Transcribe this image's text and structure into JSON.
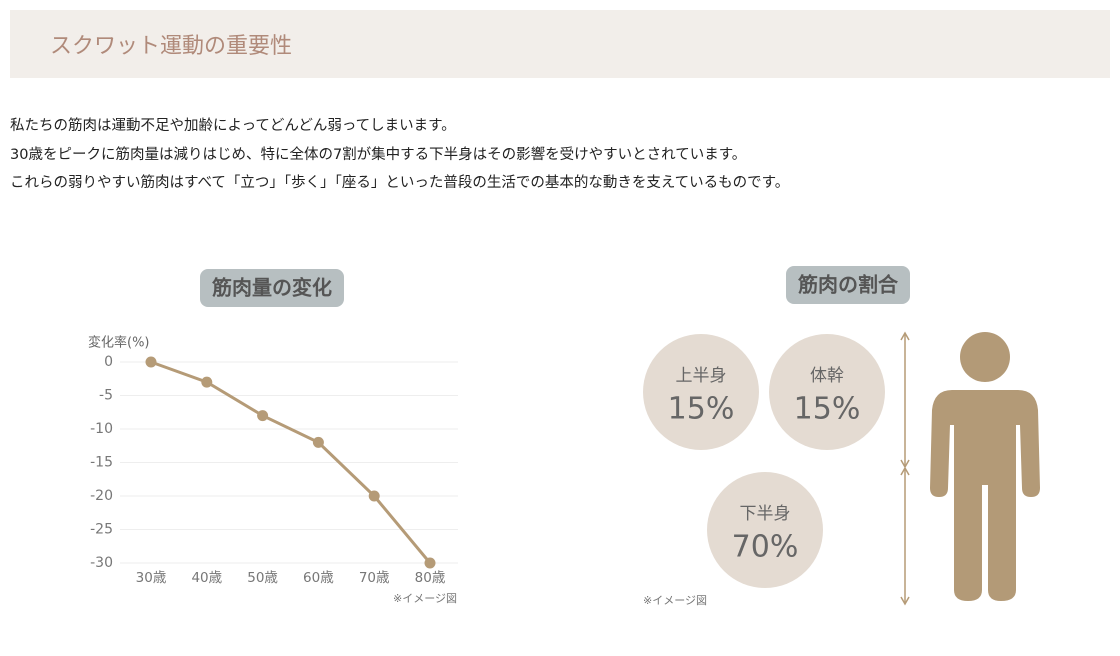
{
  "header": {
    "title": "スクワット運動の重要性"
  },
  "paragraphs": [
    "私たちの筋肉は運動不足や加齢によってどんどん弱ってしまいます。",
    "30歳をピークに筋肉量は減りはじめ、特に全体の7割が集中する下半身はその影響を受けやすいとされています。",
    "これらの弱りやすい筋肉はすべて「立つ」「歩く」「座る」といった普段の生活での基本的な動きを支えているものです。"
  ],
  "chart_data": {
    "type": "line",
    "title": "筋肉量の変化",
    "y_label": "変化率(%)",
    "categories": [
      "30歳",
      "40歳",
      "50歳",
      "60歳",
      "70歳",
      "80歳"
    ],
    "values": [
      0,
      -3,
      -8,
      -12,
      -20,
      -30
    ],
    "color": "#b59b77",
    "ylim": [
      -30,
      0
    ],
    "yticks": [
      0,
      -5,
      -10,
      -15,
      -20,
      -25,
      -30
    ],
    "grid": true,
    "note": "※イメージ図"
  },
  "muscle_ratio": {
    "title": "筋肉の割合",
    "parts": [
      {
        "label": "上半身",
        "value": "15%"
      },
      {
        "label": "体幹",
        "value": "15%"
      },
      {
        "label": "下半身",
        "value": "70%"
      }
    ],
    "note": "※イメージ図"
  }
}
